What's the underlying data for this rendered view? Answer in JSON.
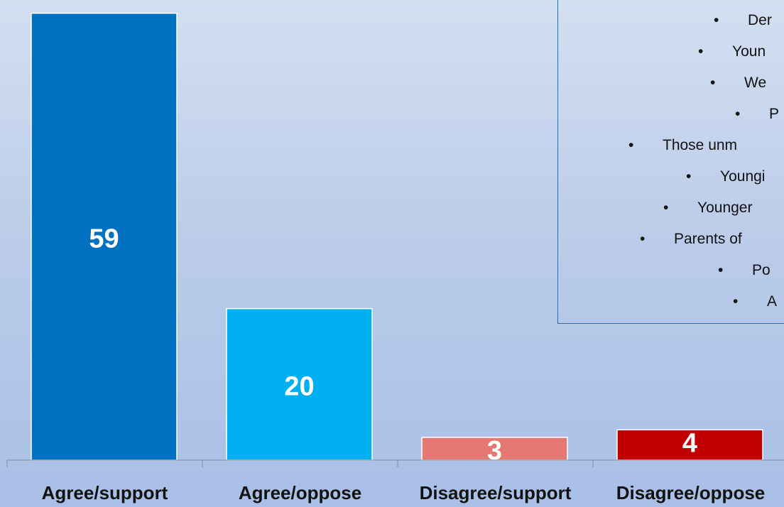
{
  "chart_data": {
    "type": "bar",
    "categories": [
      "Agree/support",
      "Agree/oppose",
      "Disagree/support",
      "Disagree/oppose"
    ],
    "values": [
      59,
      20,
      3,
      4
    ],
    "colors": [
      "#0070c0",
      "#00b0f0",
      "#e57873",
      "#c00000"
    ],
    "data_labels": [
      "59",
      "20",
      "3",
      "4"
    ],
    "ylim": [
      0,
      60
    ],
    "grid": false
  },
  "legend_box": {
    "items": [
      {
        "bullet": "•",
        "text": "Der"
      },
      {
        "bullet": "•",
        "text": "Youn"
      },
      {
        "bullet": "•",
        "text": "We"
      },
      {
        "bullet": "•",
        "text": "P"
      },
      {
        "bullet": "•",
        "text": "Those unm"
      },
      {
        "bullet": "•",
        "text": "Youngi"
      },
      {
        "bullet": "•",
        "text": "Younger"
      },
      {
        "bullet": "•",
        "text": "Parents of"
      },
      {
        "bullet": "•",
        "text": "Po"
      },
      {
        "bullet": "•",
        "text": "A"
      }
    ]
  }
}
